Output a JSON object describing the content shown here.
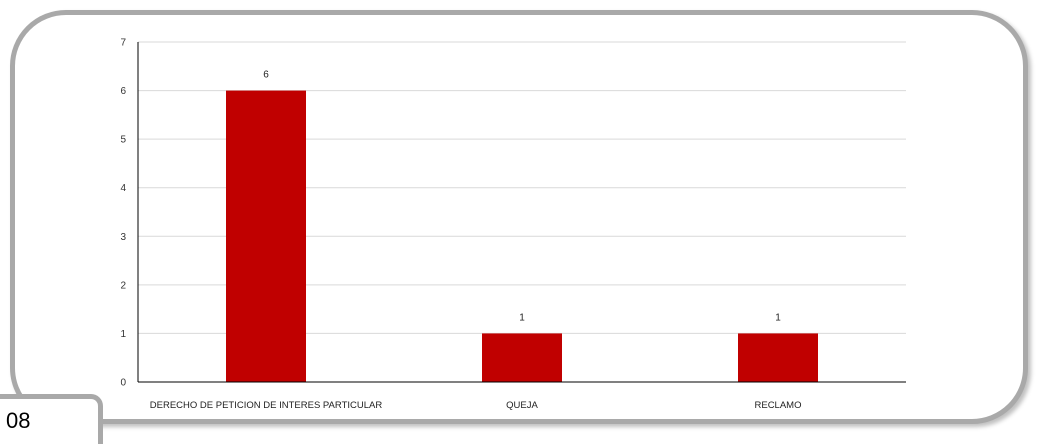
{
  "page": {
    "page_number": "08"
  },
  "chart_data": {
    "type": "bar",
    "categories": [
      "DERECHO DE PETICION DE INTERES PARTICULAR",
      "QUEJA",
      "RECLAMO"
    ],
    "values": [
      6,
      1,
      1
    ],
    "data_labels": [
      "6",
      "1",
      "1"
    ],
    "yticks": [
      "0",
      "1",
      "2",
      "3",
      "4",
      "5",
      "6",
      "7"
    ],
    "ylim": [
      0,
      7
    ],
    "grid": true,
    "legend": "none",
    "title": "",
    "xlabel": "",
    "ylabel": "",
    "colors": {
      "bar": "#c00000",
      "grid": "#d9d9d9",
      "axis": "#000000",
      "frame_border": "#a9a9a9"
    }
  }
}
